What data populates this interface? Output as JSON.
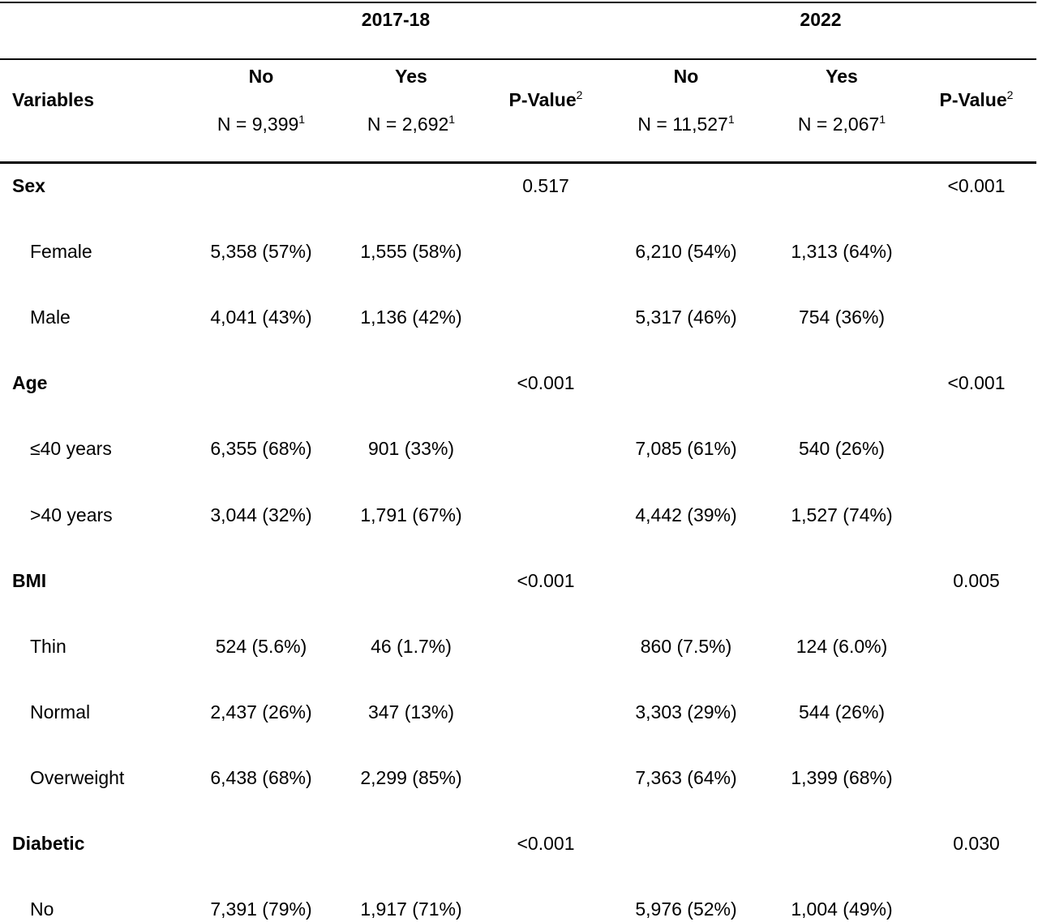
{
  "header": {
    "periods": [
      "2017-18",
      "2022"
    ],
    "variables_label": "Variables",
    "pvalue_label": "P-Value",
    "pvalue_sup": "2",
    "groups": [
      {
        "label": "No",
        "n_text": "N = 9,399",
        "n_sup": "1"
      },
      {
        "label": "Yes",
        "n_text": "N = 2,692",
        "n_sup": "1"
      },
      {
        "label": "No",
        "n_text": "N = 11,527",
        "n_sup": "1"
      },
      {
        "label": "Yes",
        "n_text": "N = 2,067",
        "n_sup": "1"
      }
    ]
  },
  "rows": [
    {
      "label": "Sex",
      "bold": true,
      "p1": "0.517",
      "p2": "<0.001"
    },
    {
      "label": "Female",
      "v": [
        "5,358 (57%)",
        "1,555 (58%)",
        "6,210 (54%)",
        "1,313 (64%)"
      ]
    },
    {
      "label": "Male",
      "v": [
        "4,041 (43%)",
        "1,136 (42%)",
        "5,317 (46%)",
        "754 (36%)"
      ]
    },
    {
      "label": "Age",
      "bold": true,
      "p1": "<0.001",
      "p2": "<0.001"
    },
    {
      "label": "≤40 years",
      "v": [
        "6,355 (68%)",
        "901 (33%)",
        "7,085 (61%)",
        "540 (26%)"
      ]
    },
    {
      "label": ">40 years",
      "v": [
        "3,044 (32%)",
        "1,791 (67%)",
        "4,442 (39%)",
        "1,527 (74%)"
      ]
    },
    {
      "label": "BMI",
      "bold": true,
      "p1": "<0.001",
      "p2": "0.005"
    },
    {
      "label": "Thin",
      "v": [
        "524 (5.6%)",
        "46 (1.7%)",
        "860 (7.5%)",
        "124 (6.0%)"
      ]
    },
    {
      "label": "Normal",
      "v": [
        "2,437 (26%)",
        "347 (13%)",
        "3,303 (29%)",
        "544 (26%)"
      ]
    },
    {
      "label": "Overweight",
      "v": [
        "6,438 (68%)",
        "2,299 (85%)",
        "7,363 (64%)",
        "1,399 (68%)"
      ]
    },
    {
      "label": "Diabetic",
      "bold": true,
      "p1": "<0.001",
      "p2": "0.030"
    },
    {
      "label": "No",
      "v": [
        "7,391 (79%)",
        "1,917 (71%)",
        "5,976 (52%)",
        "1,004 (49%)"
      ]
    }
  ]
}
